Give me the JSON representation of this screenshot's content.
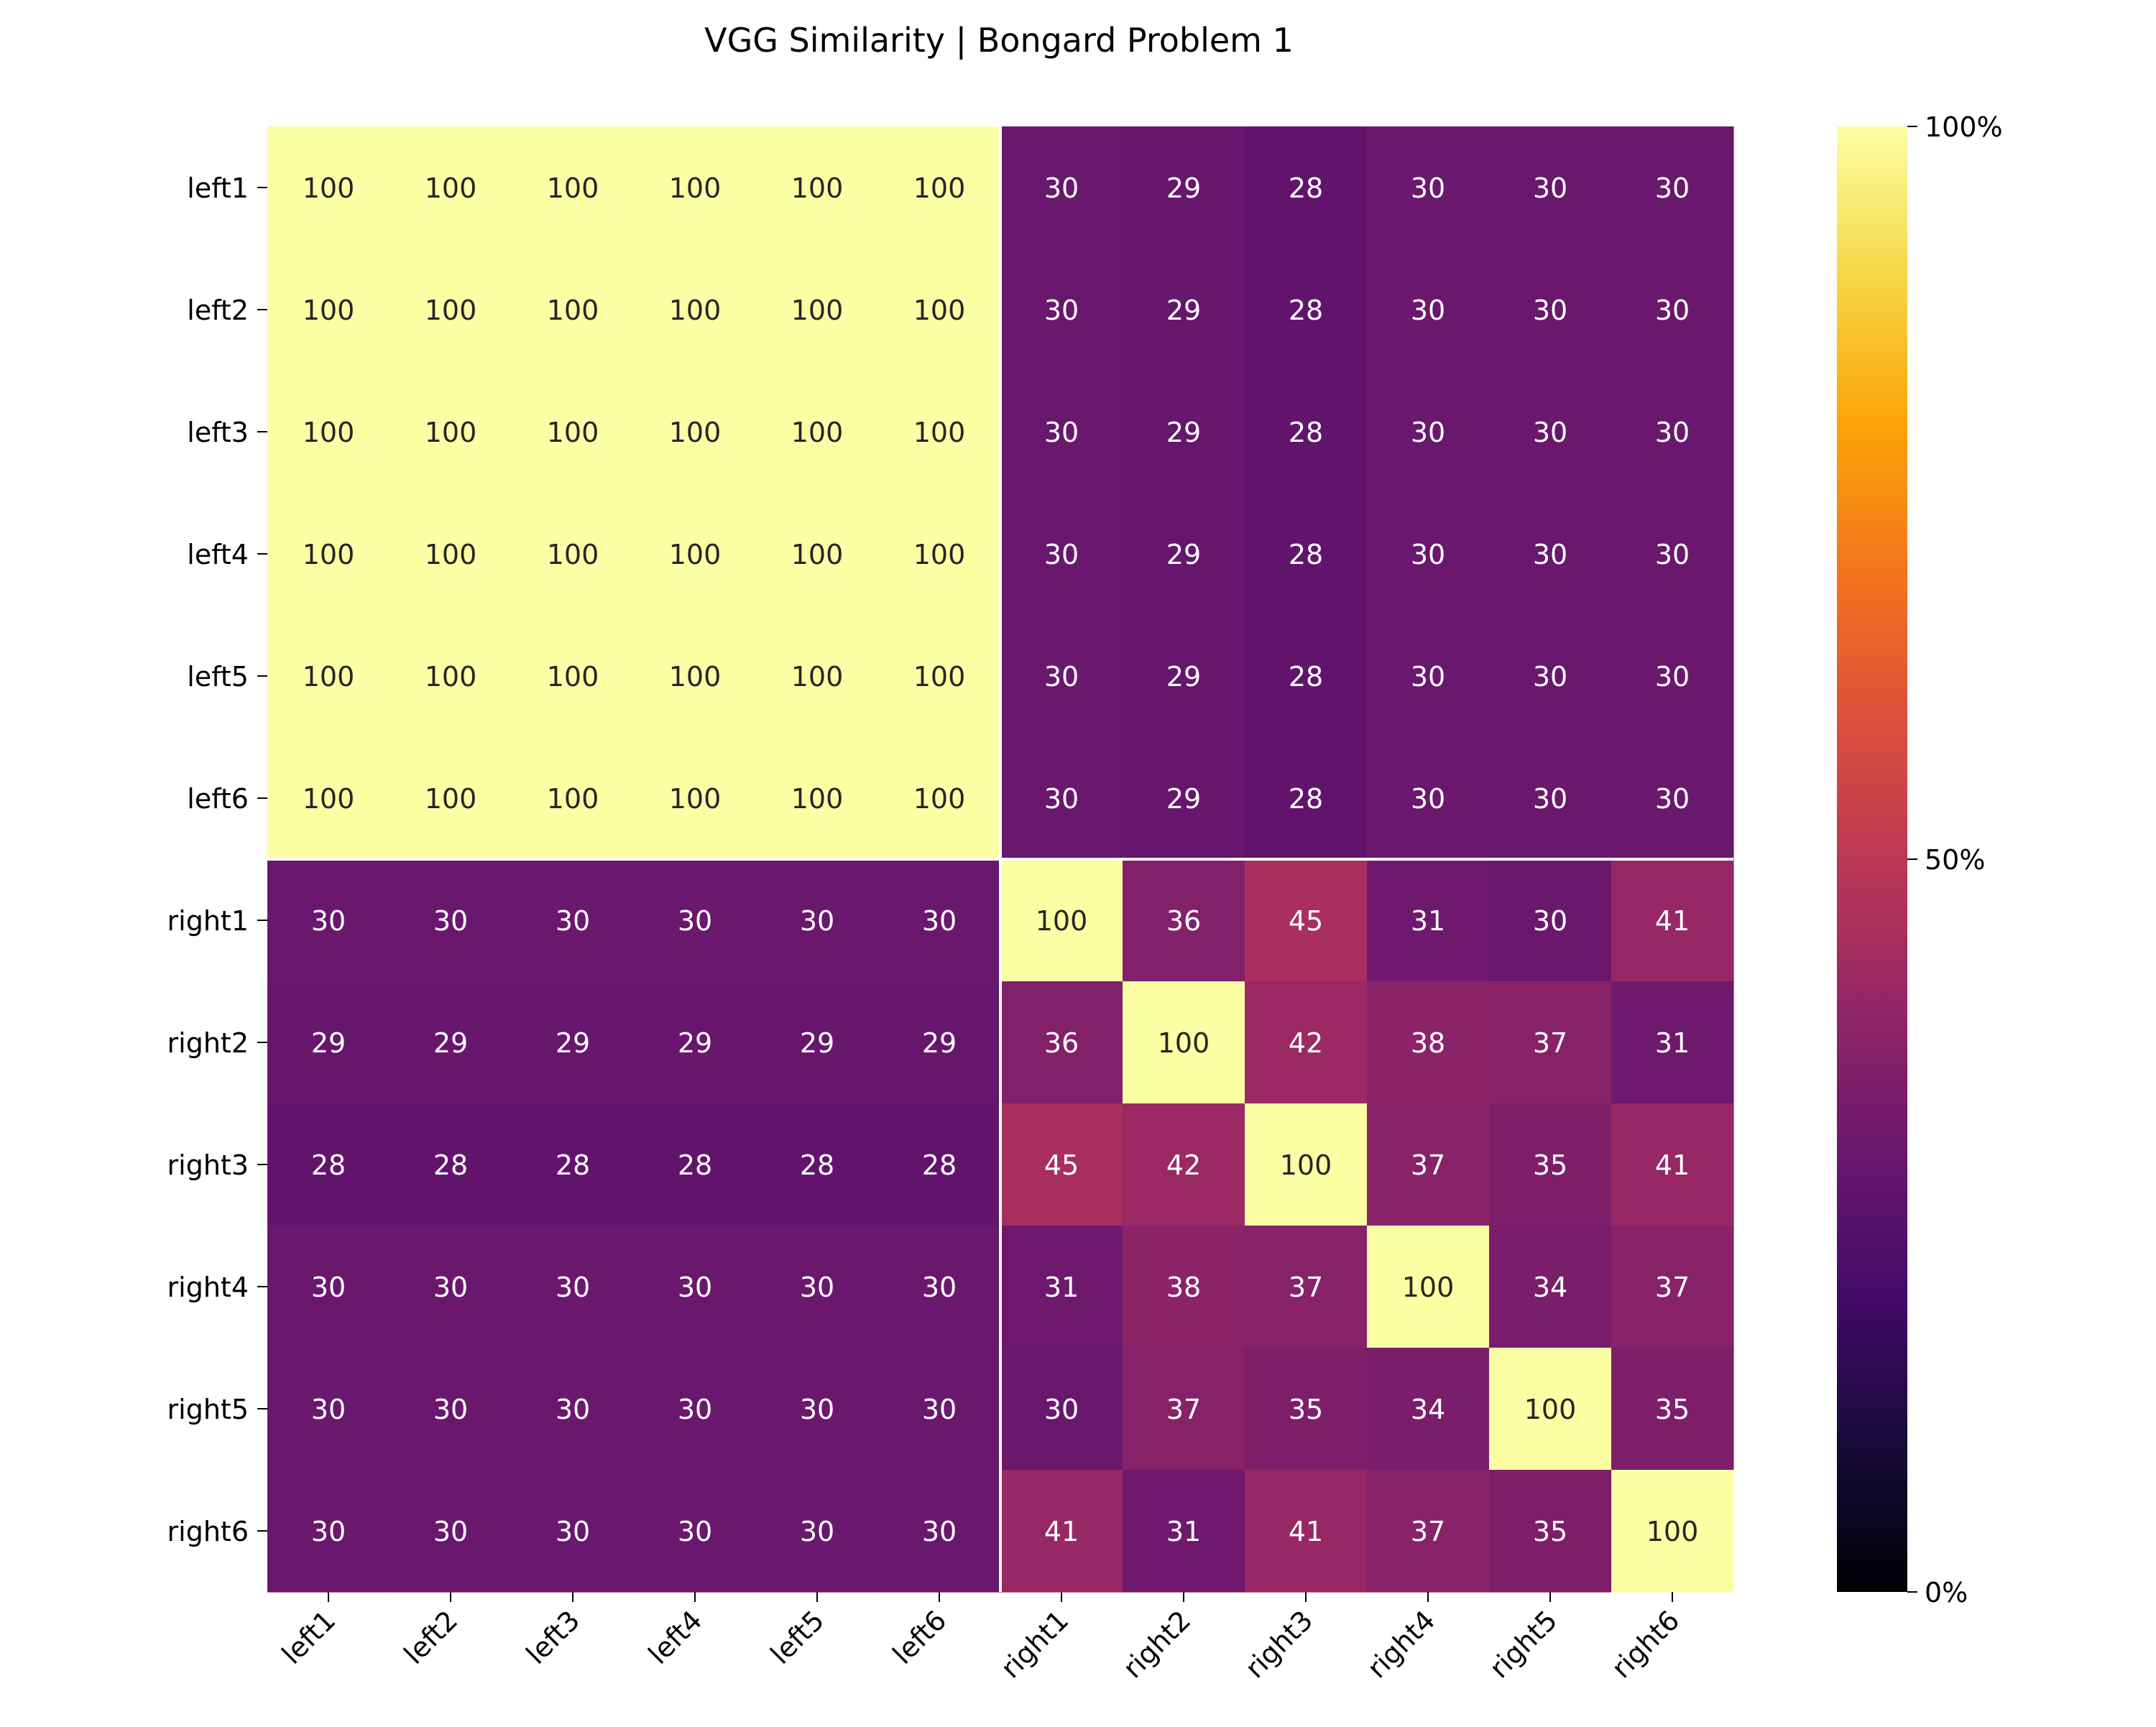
{
  "chart_data": {
    "type": "heatmap",
    "title": "VGG Similarity | Bongard Problem 1",
    "xlabel": "",
    "ylabel": "",
    "x_labels": [
      "left1",
      "left2",
      "left3",
      "left4",
      "left5",
      "left6",
      "right1",
      "right2",
      "right3",
      "right4",
      "right5",
      "right6"
    ],
    "y_labels": [
      "left1",
      "left2",
      "left3",
      "left4",
      "left5",
      "left6",
      "right1",
      "right2",
      "right3",
      "right4",
      "right5",
      "right6"
    ],
    "values": [
      [
        100,
        100,
        100,
        100,
        100,
        100,
        30,
        29,
        28,
        30,
        30,
        30
      ],
      [
        100,
        100,
        100,
        100,
        100,
        100,
        30,
        29,
        28,
        30,
        30,
        30
      ],
      [
        100,
        100,
        100,
        100,
        100,
        100,
        30,
        29,
        28,
        30,
        30,
        30
      ],
      [
        100,
        100,
        100,
        100,
        100,
        100,
        30,
        29,
        28,
        30,
        30,
        30
      ],
      [
        100,
        100,
        100,
        100,
        100,
        100,
        30,
        29,
        28,
        30,
        30,
        30
      ],
      [
        100,
        100,
        100,
        100,
        100,
        100,
        30,
        29,
        28,
        30,
        30,
        30
      ],
      [
        30,
        30,
        30,
        30,
        30,
        30,
        100,
        36,
        45,
        31,
        30,
        41
      ],
      [
        29,
        29,
        29,
        29,
        29,
        29,
        36,
        100,
        42,
        38,
        37,
        31
      ],
      [
        28,
        28,
        28,
        28,
        28,
        28,
        45,
        42,
        100,
        37,
        35,
        41
      ],
      [
        30,
        30,
        30,
        30,
        30,
        30,
        31,
        38,
        37,
        100,
        34,
        37
      ],
      [
        30,
        30,
        30,
        30,
        30,
        30,
        30,
        37,
        35,
        34,
        100,
        35
      ],
      [
        30,
        30,
        30,
        30,
        30,
        30,
        41,
        31,
        41,
        37,
        35,
        100
      ]
    ],
    "value_range": [
      0,
      100
    ],
    "colormap": "inferno",
    "colorbar": {
      "ticks": [
        0,
        50,
        100
      ],
      "tick_labels": [
        "0%",
        "50%",
        "100%"
      ]
    },
    "group_divider_after_index": 6,
    "divider_color": "#ffffff",
    "grid": false,
    "legend": "none"
  }
}
